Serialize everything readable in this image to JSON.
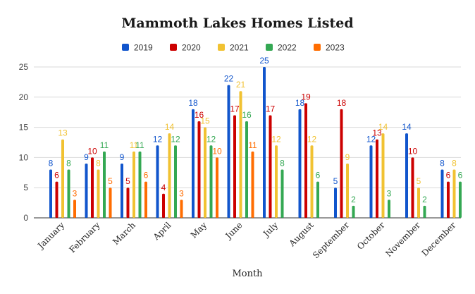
{
  "chart_data": {
    "type": "bar",
    "title": "Mammoth Lakes Homes Listed",
    "xlabel": "Month",
    "ylabel": "",
    "ylim": [
      0,
      25
    ],
    "yticks": [
      "0",
      "5",
      "10",
      "15",
      "20",
      "25"
    ],
    "grid": true,
    "legend_position": "top",
    "categories": [
      "January",
      "February",
      "March",
      "April",
      "May",
      "June",
      "July",
      "August",
      "September",
      "October",
      "November",
      "December"
    ],
    "series": [
      {
        "name": "2019",
        "color": "#1155cc",
        "values": [
          8,
          9,
          9,
          12,
          18,
          22,
          25,
          18,
          5,
          12,
          14,
          8
        ]
      },
      {
        "name": "2020",
        "color": "#cc0000",
        "values": [
          6,
          10,
          5,
          4,
          16,
          17,
          17,
          19,
          18,
          13,
          10,
          6
        ]
      },
      {
        "name": "2021",
        "color": "#f1c232",
        "values": [
          13,
          8,
          11,
          14,
          15,
          21,
          12,
          12,
          9,
          14,
          5,
          8
        ]
      },
      {
        "name": "2022",
        "color": "#34a853",
        "values": [
          8,
          11,
          11,
          12,
          12,
          16,
          8,
          6,
          2,
          3,
          2,
          6
        ]
      },
      {
        "name": "2023",
        "color": "#ff6d01",
        "values": [
          3,
          5,
          6,
          3,
          10,
          11,
          null,
          null,
          null,
          null,
          null,
          null
        ]
      }
    ]
  }
}
